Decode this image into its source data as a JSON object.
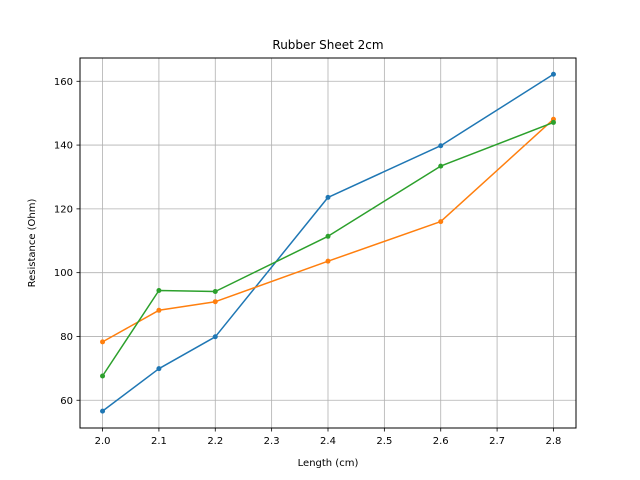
{
  "chart_data": {
    "type": "line",
    "title": "Rubber Sheet 2cm",
    "xlabel": "Length (cm)",
    "ylabel": "Resistance (Ohm)",
    "xlim": [
      1.96,
      2.84
    ],
    "ylim": [
      51.3,
      167.3
    ],
    "xticks": [
      2.0,
      2.1,
      2.2,
      2.3,
      2.4,
      2.5,
      2.6,
      2.7,
      2.8
    ],
    "xtick_labels": [
      "2.0",
      "2.1",
      "2.2",
      "2.3",
      "2.4",
      "2.5",
      "2.6",
      "2.7",
      "2.8"
    ],
    "yticks": [
      60,
      80,
      100,
      120,
      140,
      160
    ],
    "ytick_labels": [
      "60",
      "80",
      "100",
      "120",
      "140",
      "160"
    ],
    "grid": true,
    "x": [
      2.0,
      2.1,
      2.2,
      2.4,
      2.6,
      2.8
    ],
    "series": [
      {
        "color": "#1f77b4",
        "values": [
          56.6,
          69.9,
          79.9,
          123.6,
          139.8,
          162.2
        ]
      },
      {
        "color": "#ff7f0e",
        "values": [
          78.3,
          88.2,
          90.9,
          103.6,
          116.0,
          148.1
        ]
      },
      {
        "color": "#2ca02c",
        "values": [
          67.6,
          94.4,
          94.1,
          111.4,
          133.4,
          147.1
        ]
      }
    ]
  }
}
